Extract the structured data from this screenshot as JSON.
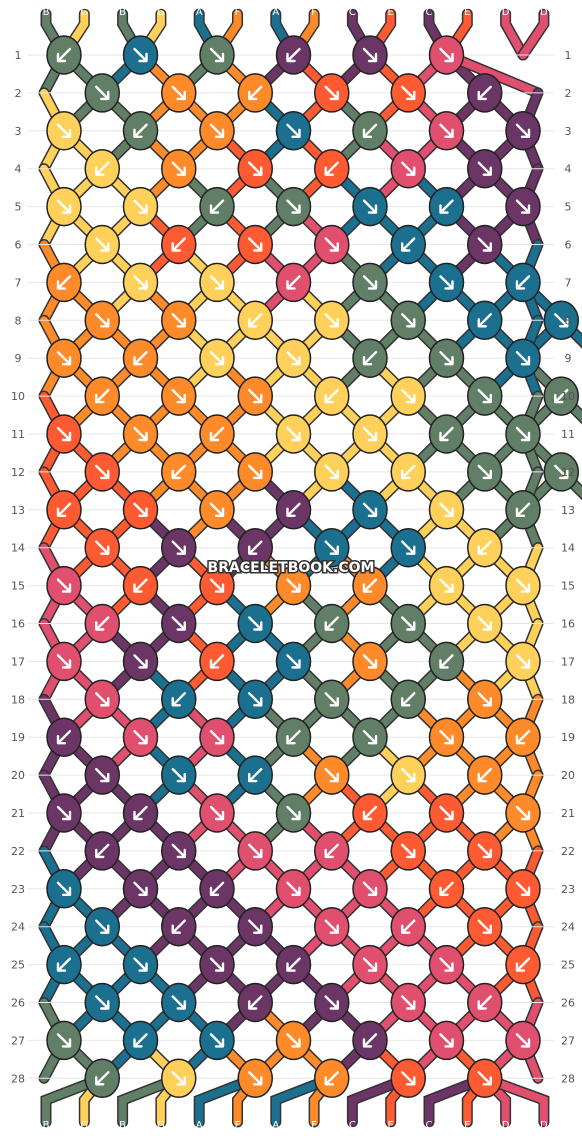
{
  "pattern": {
    "watermark": "BRACELETBOOK.COM",
    "strand_labels_top": [
      "B",
      "G",
      "B",
      "G",
      "A",
      "F",
      "A",
      "F",
      "C",
      "E",
      "C",
      "E",
      "D",
      "D"
    ],
    "strand_labels_bottom": [
      "B",
      "G",
      "B",
      "G",
      "A",
      "F",
      "A",
      "F",
      "C",
      "E",
      "C",
      "E",
      "D",
      "D"
    ],
    "row_numbers": [
      "1",
      "2",
      "3",
      "4",
      "5",
      "6",
      "7",
      "8",
      "9",
      "10",
      "11",
      "12",
      "13",
      "14",
      "15",
      "16",
      "17",
      "18",
      "19",
      "20",
      "21",
      "22",
      "23",
      "24",
      "25",
      "26",
      "27",
      "28"
    ],
    "colors": {
      "A": "#1b6f8f",
      "B": "#617f66",
      "C": "#6b3566",
      "D": "#e0506e",
      "E": "#ff5a32",
      "F": "#ff8a2a",
      "G": "#ffd05a"
    },
    "rows": [
      "BABCCD",
      "BFFEEC",
      "GBFABDC",
      "GFEEDC",
      "GGBBAAC",
      "GEEDAC",
      "FGGDBAA",
      "FFGGBAA",
      "FFGGBBA",
      "FFFGGBB",
      "EFFGGBB",
      "EFFGGBB",
      "EEFCAGB",
      "ECCAAG",
      "DEEFFGG",
      "DCABBG",
      "DCEAFBG",
      "DAABBF",
      "CDDBBFF",
      "CAAFGF",
      "CCDBEEF",
      "CCDDEE",
      "ACCDDEE",
      "ACCDDE",
      "AACCDDE",
      "AACCDD",
      "BAAFCDD",
      "BGFFEE"
    ]
  }
}
